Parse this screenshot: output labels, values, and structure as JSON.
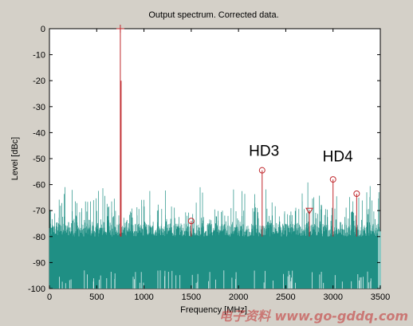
{
  "chart_data": {
    "type": "line",
    "title": "Output spectrum. Corrected data.",
    "xlabel": "Frequency [MHz]",
    "ylabel": "Level [dBc]",
    "xlim": [
      0,
      3500
    ],
    "ylim": [
      -100,
      0
    ],
    "xticks": [
      "0",
      "500",
      "1000",
      "1500",
      "2000",
      "2500",
      "3000",
      "3500"
    ],
    "yticks": [
      "0",
      "-10",
      "-20",
      "-30",
      "-40",
      "-50",
      "-60",
      "-70",
      "-80",
      "-90",
      "-100"
    ],
    "noise_floor": {
      "top_min": -80,
      "top_max": -75,
      "spur_max": -58,
      "bottom": -100
    },
    "fundamental": {
      "x": 750,
      "y": 0,
      "marker": "+"
    },
    "harmonic_markers": [
      {
        "x": 1500,
        "y": -74,
        "marker": "o"
      },
      {
        "x": 2250,
        "y": -54.5,
        "marker": "o"
      },
      {
        "x": 2750,
        "y": -70,
        "marker": "v"
      },
      {
        "x": 3000,
        "y": -58,
        "marker": "o"
      },
      {
        "x": 3250,
        "y": -63.5,
        "marker": "o"
      }
    ],
    "annotations": [
      {
        "text": "HD3",
        "x": 2270,
        "y": -49
      },
      {
        "text": "HD4",
        "x": 3050,
        "y": -51
      }
    ],
    "grid": false,
    "colors": {
      "noise": "#1f8f84",
      "signal": "#c0282d",
      "marker": "#c0282d",
      "background": "#d4d0c8",
      "plot_bg": "#ffffff"
    }
  },
  "watermark": "电子资料 www.go-gddq.com"
}
